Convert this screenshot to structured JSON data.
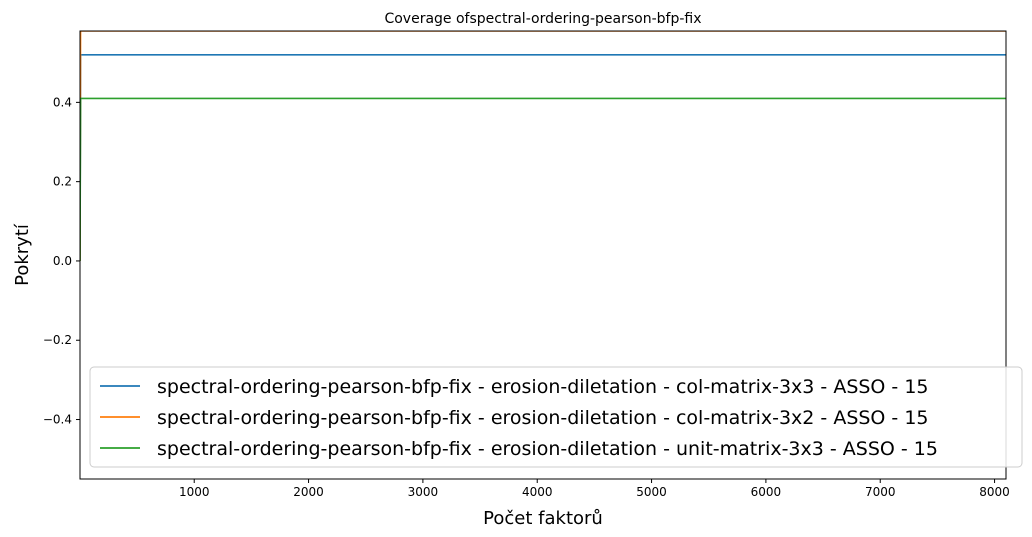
{
  "chart_data": {
    "type": "line",
    "title": "Coverage ofspectral-ordering-pearson-bfp-fix",
    "xlabel": "Počet faktorů",
    "ylabel": "Pokrytí",
    "xlim": [
      1,
      8100
    ],
    "ylim": [
      -0.55,
      0.58
    ],
    "xticks": [
      1000,
      2000,
      3000,
      4000,
      5000,
      6000,
      7000,
      8000
    ],
    "xtick_labels": [
      "1000",
      "2000",
      "3000",
      "4000",
      "5000",
      "6000",
      "7000",
      "8000"
    ],
    "yticks": [
      -0.4,
      -0.2,
      0.0,
      0.2,
      0.4
    ],
    "ytick_labels": [
      "−0.4",
      "−0.2",
      "0.0",
      "0.2",
      "0.4"
    ],
    "grid": false,
    "legend_position": "lower-right",
    "series": [
      {
        "name": "spectral-ordering-pearson-bfp-fix - erosion-diletation - col-matrix-3x3 - ASSO - 15",
        "color": "#1f77b4",
        "x": [
          1,
          6,
          8100
        ],
        "y": [
          0.0,
          0.52,
          0.52
        ]
      },
      {
        "name": "spectral-ordering-pearson-bfp-fix - erosion-diletation - col-matrix-3x2 - ASSO - 15",
        "color": "#ff7f0e",
        "x": [
          1,
          6,
          8100
        ],
        "y": [
          0.0,
          0.58,
          0.58
        ]
      },
      {
        "name": "spectral-ordering-pearson-bfp-fix - erosion-diletation - unit-matrix-3x3 - ASSO - 15",
        "color": "#2ca02c",
        "x": [
          1,
          6,
          8100
        ],
        "y": [
          0.0,
          0.41,
          0.41
        ]
      }
    ]
  }
}
